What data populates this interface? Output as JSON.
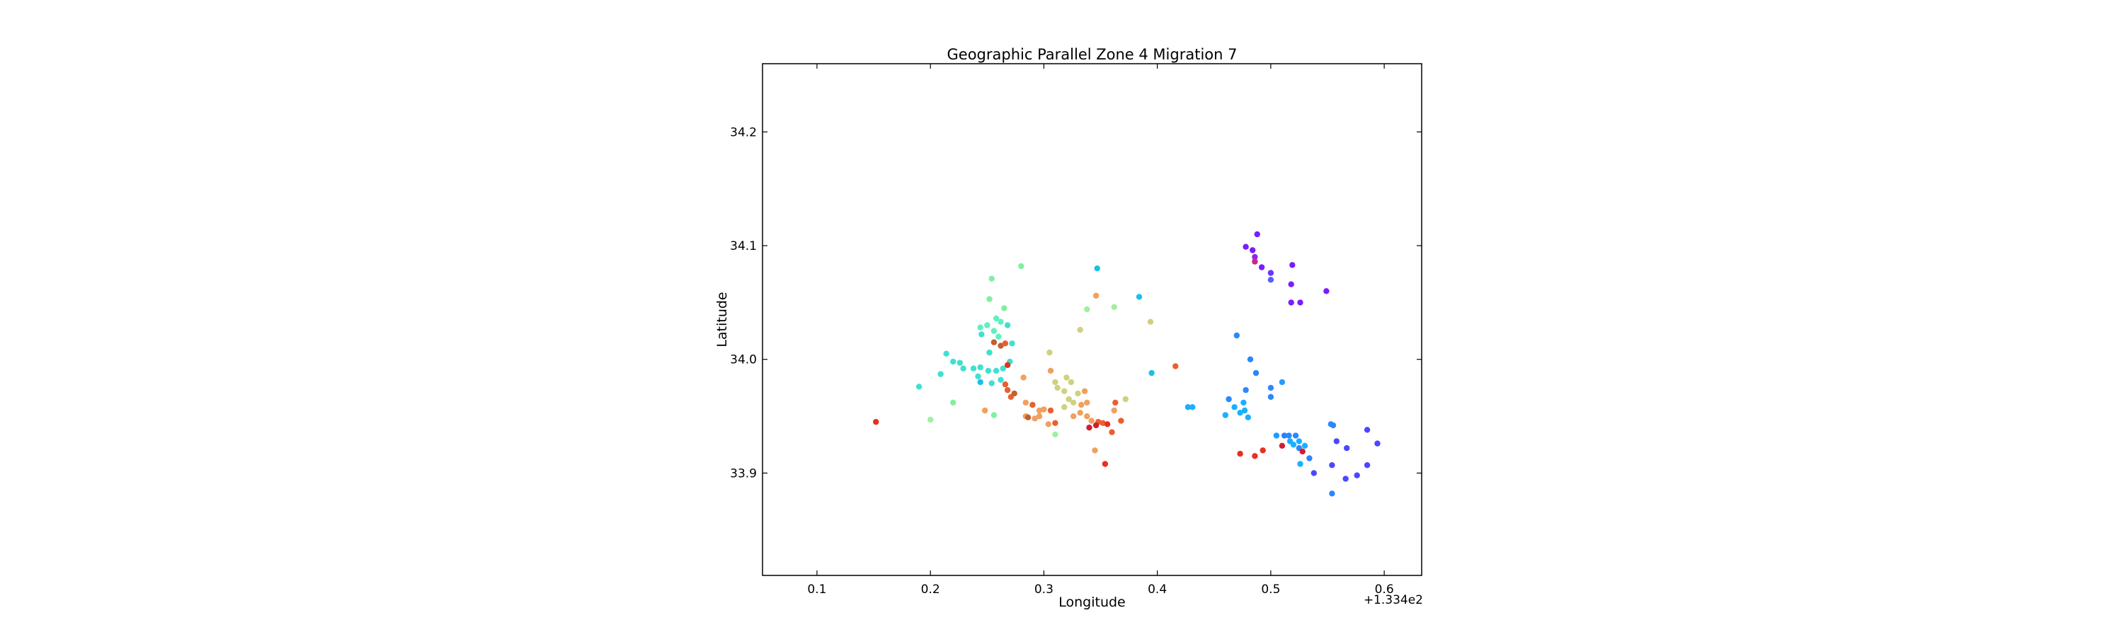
{
  "chart_data": {
    "type": "scatter",
    "title": "Geographic Parallel Zone 4 Migration 7",
    "xlabel": "Longitude",
    "ylabel": "Latitude",
    "x_offset_label": "+1.334e2",
    "xlim": [
      0.052,
      0.633
    ],
    "ylim": [
      33.81,
      34.26
    ],
    "x_ticks": [
      {
        "value": 0.1,
        "label": "0.1"
      },
      {
        "value": 0.2,
        "label": "0.2"
      },
      {
        "value": 0.3,
        "label": "0.3"
      },
      {
        "value": 0.4,
        "label": "0.4"
      },
      {
        "value": 0.5,
        "label": "0.5"
      },
      {
        "value": 0.6,
        "label": "0.6"
      }
    ],
    "y_ticks": [
      {
        "value": 33.9,
        "label": "33.9"
      },
      {
        "value": 34.0,
        "label": "34.0"
      },
      {
        "value": 34.1,
        "label": "34.1"
      },
      {
        "value": 34.2,
        "label": "34.2"
      }
    ],
    "grid": false,
    "points": [
      {
        "x": 0.488,
        "y": 34.11,
        "color": "#7a1cff"
      },
      {
        "x": 0.478,
        "y": 34.099,
        "color": "#7a1cff"
      },
      {
        "x": 0.484,
        "y": 34.096,
        "color": "#7a1cff"
      },
      {
        "x": 0.486,
        "y": 34.09,
        "color": "#8a2be2"
      },
      {
        "x": 0.486,
        "y": 34.086,
        "color": "#d0208c"
      },
      {
        "x": 0.492,
        "y": 34.081,
        "color": "#7a1cff"
      },
      {
        "x": 0.5,
        "y": 34.076,
        "color": "#6a35ff"
      },
      {
        "x": 0.5,
        "y": 34.07,
        "color": "#5060ff"
      },
      {
        "x": 0.519,
        "y": 34.083,
        "color": "#7a1cff"
      },
      {
        "x": 0.518,
        "y": 34.066,
        "color": "#7a1cff"
      },
      {
        "x": 0.518,
        "y": 34.05,
        "color": "#7a1cff"
      },
      {
        "x": 0.526,
        "y": 34.05,
        "color": "#7a1cff"
      },
      {
        "x": 0.549,
        "y": 34.06,
        "color": "#7a1cff"
      },
      {
        "x": 0.47,
        "y": 34.021,
        "color": "#2a88ff"
      },
      {
        "x": 0.482,
        "y": 34.0,
        "color": "#2a88ff"
      },
      {
        "x": 0.487,
        "y": 33.988,
        "color": "#2a88ff"
      },
      {
        "x": 0.51,
        "y": 33.98,
        "color": "#2a9bff"
      },
      {
        "x": 0.5,
        "y": 33.975,
        "color": "#2a88ff"
      },
      {
        "x": 0.5,
        "y": 33.967,
        "color": "#2a88ff"
      },
      {
        "x": 0.478,
        "y": 33.973,
        "color": "#2a88ff"
      },
      {
        "x": 0.463,
        "y": 33.965,
        "color": "#2a88ff"
      },
      {
        "x": 0.476,
        "y": 33.962,
        "color": "#1ab0ff"
      },
      {
        "x": 0.468,
        "y": 33.958,
        "color": "#1ab0ff"
      },
      {
        "x": 0.473,
        "y": 33.953,
        "color": "#1ab0ff"
      },
      {
        "x": 0.477,
        "y": 33.955,
        "color": "#1ab0ff"
      },
      {
        "x": 0.46,
        "y": 33.951,
        "color": "#1ab0ff"
      },
      {
        "x": 0.48,
        "y": 33.949,
        "color": "#1ab0ff"
      },
      {
        "x": 0.427,
        "y": 33.958,
        "color": "#1ab0ff"
      },
      {
        "x": 0.431,
        "y": 33.958,
        "color": "#1ab0ff"
      },
      {
        "x": 0.553,
        "y": 33.943,
        "color": "#2a88ff"
      },
      {
        "x": 0.555,
        "y": 33.942,
        "color": "#2a88ff"
      },
      {
        "x": 0.505,
        "y": 33.933,
        "color": "#1a9bff"
      },
      {
        "x": 0.512,
        "y": 33.933,
        "color": "#2a7fff"
      },
      {
        "x": 0.516,
        "y": 33.933,
        "color": "#2a88ff"
      },
      {
        "x": 0.522,
        "y": 33.933,
        "color": "#2a88ff"
      },
      {
        "x": 0.517,
        "y": 33.928,
        "color": "#1ab0ff"
      },
      {
        "x": 0.525,
        "y": 33.928,
        "color": "#1ab0ff"
      },
      {
        "x": 0.52,
        "y": 33.925,
        "color": "#1ab0ff"
      },
      {
        "x": 0.53,
        "y": 33.924,
        "color": "#1ab0ff"
      },
      {
        "x": 0.525,
        "y": 33.922,
        "color": "#2a88ff"
      },
      {
        "x": 0.51,
        "y": 33.924,
        "color": "#d02030"
      },
      {
        "x": 0.528,
        "y": 33.919,
        "color": "#d02030"
      },
      {
        "x": 0.534,
        "y": 33.913,
        "color": "#2a88ff"
      },
      {
        "x": 0.526,
        "y": 33.908,
        "color": "#1ab0ff"
      },
      {
        "x": 0.538,
        "y": 33.9,
        "color": "#4a48ff"
      },
      {
        "x": 0.558,
        "y": 33.928,
        "color": "#4a48ff"
      },
      {
        "x": 0.567,
        "y": 33.922,
        "color": "#4a48ff"
      },
      {
        "x": 0.585,
        "y": 33.938,
        "color": "#4a48ff"
      },
      {
        "x": 0.594,
        "y": 33.926,
        "color": "#4a48ff"
      },
      {
        "x": 0.554,
        "y": 33.907,
        "color": "#4a48ff"
      },
      {
        "x": 0.566,
        "y": 33.895,
        "color": "#4a48ff"
      },
      {
        "x": 0.576,
        "y": 33.898,
        "color": "#4a48ff"
      },
      {
        "x": 0.585,
        "y": 33.907,
        "color": "#4a48ff"
      },
      {
        "x": 0.554,
        "y": 33.882,
        "color": "#2a88ff"
      },
      {
        "x": 0.473,
        "y": 33.917,
        "color": "#e83020"
      },
      {
        "x": 0.486,
        "y": 33.915,
        "color": "#e83020"
      },
      {
        "x": 0.493,
        "y": 33.92,
        "color": "#e83020"
      },
      {
        "x": 0.347,
        "y": 34.08,
        "color": "#1ac0e8"
      },
      {
        "x": 0.384,
        "y": 34.055,
        "color": "#1ac0e8"
      },
      {
        "x": 0.395,
        "y": 33.988,
        "color": "#1ac0e8"
      },
      {
        "x": 0.362,
        "y": 34.046,
        "color": "#a0f0a0"
      },
      {
        "x": 0.338,
        "y": 34.044,
        "color": "#a0f0a0"
      },
      {
        "x": 0.28,
        "y": 34.082,
        "color": "#80f0a0"
      },
      {
        "x": 0.254,
        "y": 34.071,
        "color": "#80f0a0"
      },
      {
        "x": 0.252,
        "y": 34.053,
        "color": "#80f0a0"
      },
      {
        "x": 0.265,
        "y": 34.045,
        "color": "#80f0a0"
      },
      {
        "x": 0.258,
        "y": 34.036,
        "color": "#60f0c0"
      },
      {
        "x": 0.25,
        "y": 34.03,
        "color": "#60f0c0"
      },
      {
        "x": 0.244,
        "y": 34.028,
        "color": "#60f0c0"
      },
      {
        "x": 0.262,
        "y": 34.033,
        "color": "#60f0c0"
      },
      {
        "x": 0.256,
        "y": 34.025,
        "color": "#60f0c0"
      },
      {
        "x": 0.245,
        "y": 34.022,
        "color": "#40e0d0"
      },
      {
        "x": 0.26,
        "y": 34.02,
        "color": "#60f0c0"
      },
      {
        "x": 0.268,
        "y": 34.03,
        "color": "#40e0d0"
      },
      {
        "x": 0.272,
        "y": 34.014,
        "color": "#40e0d0"
      },
      {
        "x": 0.256,
        "y": 34.015,
        "color": "#c06030"
      },
      {
        "x": 0.262,
        "y": 34.012,
        "color": "#c06030"
      },
      {
        "x": 0.266,
        "y": 34.014,
        "color": "#e86030"
      },
      {
        "x": 0.252,
        "y": 34.006,
        "color": "#40e0d0"
      },
      {
        "x": 0.214,
        "y": 34.005,
        "color": "#40e0d0"
      },
      {
        "x": 0.22,
        "y": 33.998,
        "color": "#40e0d0"
      },
      {
        "x": 0.226,
        "y": 33.997,
        "color": "#40e0d0"
      },
      {
        "x": 0.229,
        "y": 33.992,
        "color": "#40e0d0"
      },
      {
        "x": 0.238,
        "y": 33.992,
        "color": "#40e0d0"
      },
      {
        "x": 0.244,
        "y": 33.993,
        "color": "#40e0d0"
      },
      {
        "x": 0.251,
        "y": 33.99,
        "color": "#40e0d0"
      },
      {
        "x": 0.258,
        "y": 33.99,
        "color": "#40e0d0"
      },
      {
        "x": 0.264,
        "y": 33.992,
        "color": "#40e0d0"
      },
      {
        "x": 0.27,
        "y": 33.998,
        "color": "#40e0d0"
      },
      {
        "x": 0.268,
        "y": 33.995,
        "color": "#e83020"
      },
      {
        "x": 0.209,
        "y": 33.987,
        "color": "#40e0d0"
      },
      {
        "x": 0.242,
        "y": 33.985,
        "color": "#40e0d0"
      },
      {
        "x": 0.262,
        "y": 33.982,
        "color": "#40e0d0"
      },
      {
        "x": 0.254,
        "y": 33.979,
        "color": "#40e0d0"
      },
      {
        "x": 0.244,
        "y": 33.98,
        "color": "#1ac0e8"
      },
      {
        "x": 0.19,
        "y": 33.976,
        "color": "#40e0d0"
      },
      {
        "x": 0.266,
        "y": 33.978,
        "color": "#e86030"
      },
      {
        "x": 0.268,
        "y": 33.973,
        "color": "#e86030"
      },
      {
        "x": 0.271,
        "y": 33.967,
        "color": "#e86030"
      },
      {
        "x": 0.282,
        "y": 33.984,
        "color": "#f0a060"
      },
      {
        "x": 0.284,
        "y": 33.962,
        "color": "#f0a060"
      },
      {
        "x": 0.29,
        "y": 33.96,
        "color": "#e86030"
      },
      {
        "x": 0.296,
        "y": 33.955,
        "color": "#f0a060"
      },
      {
        "x": 0.3,
        "y": 33.956,
        "color": "#f0a060"
      },
      {
        "x": 0.306,
        "y": 33.955,
        "color": "#e86030"
      },
      {
        "x": 0.284,
        "y": 33.95,
        "color": "#f0a060"
      },
      {
        "x": 0.292,
        "y": 33.948,
        "color": "#f0a060"
      },
      {
        "x": 0.31,
        "y": 33.944,
        "color": "#e86030"
      },
      {
        "x": 0.286,
        "y": 33.949,
        "color": "#c06030"
      },
      {
        "x": 0.304,
        "y": 33.943,
        "color": "#f0a060"
      },
      {
        "x": 0.248,
        "y": 33.955,
        "color": "#f0a060"
      },
      {
        "x": 0.256,
        "y": 33.951,
        "color": "#80f0a0"
      },
      {
        "x": 0.22,
        "y": 33.962,
        "color": "#80f0a0"
      },
      {
        "x": 0.2,
        "y": 33.947,
        "color": "#a0f0a0"
      },
      {
        "x": 0.152,
        "y": 33.945,
        "color": "#e83020"
      },
      {
        "x": 0.305,
        "y": 34.006,
        "color": "#d0d080"
      },
      {
        "x": 0.306,
        "y": 33.99,
        "color": "#f0a060"
      },
      {
        "x": 0.31,
        "y": 33.98,
        "color": "#d0d080"
      },
      {
        "x": 0.312,
        "y": 33.975,
        "color": "#d0d080"
      },
      {
        "x": 0.318,
        "y": 33.972,
        "color": "#d0d080"
      },
      {
        "x": 0.32,
        "y": 33.984,
        "color": "#d0d080"
      },
      {
        "x": 0.324,
        "y": 33.98,
        "color": "#d0d080"
      },
      {
        "x": 0.33,
        "y": 33.97,
        "color": "#d0d080"
      },
      {
        "x": 0.326,
        "y": 33.962,
        "color": "#d0d080"
      },
      {
        "x": 0.322,
        "y": 33.965,
        "color": "#d0d080"
      },
      {
        "x": 0.318,
        "y": 33.958,
        "color": "#d0d080"
      },
      {
        "x": 0.336,
        "y": 33.972,
        "color": "#f0a060"
      },
      {
        "x": 0.333,
        "y": 33.96,
        "color": "#f0a060"
      },
      {
        "x": 0.338,
        "y": 33.962,
        "color": "#f0a060"
      },
      {
        "x": 0.332,
        "y": 33.953,
        "color": "#f0a060"
      },
      {
        "x": 0.326,
        "y": 33.95,
        "color": "#f0a060"
      },
      {
        "x": 0.338,
        "y": 33.95,
        "color": "#f0a060"
      },
      {
        "x": 0.342,
        "y": 33.946,
        "color": "#f0a060"
      },
      {
        "x": 0.348,
        "y": 33.945,
        "color": "#e86030"
      },
      {
        "x": 0.352,
        "y": 33.944,
        "color": "#e86030"
      },
      {
        "x": 0.356,
        "y": 33.943,
        "color": "#e83020"
      },
      {
        "x": 0.346,
        "y": 33.942,
        "color": "#d02030"
      },
      {
        "x": 0.34,
        "y": 33.94,
        "color": "#d02030"
      },
      {
        "x": 0.36,
        "y": 33.936,
        "color": "#e86030"
      },
      {
        "x": 0.363,
        "y": 33.962,
        "color": "#e86030"
      },
      {
        "x": 0.362,
        "y": 33.955,
        "color": "#f0a060"
      },
      {
        "x": 0.368,
        "y": 33.946,
        "color": "#e86030"
      },
      {
        "x": 0.345,
        "y": 33.92,
        "color": "#f0a060"
      },
      {
        "x": 0.354,
        "y": 33.908,
        "color": "#e83020"
      },
      {
        "x": 0.372,
        "y": 33.965,
        "color": "#d0d080"
      },
      {
        "x": 0.31,
        "y": 33.934,
        "color": "#a0f0a0"
      },
      {
        "x": 0.346,
        "y": 34.056,
        "color": "#f0a060"
      },
      {
        "x": 0.332,
        "y": 34.026,
        "color": "#d0d080"
      },
      {
        "x": 0.394,
        "y": 34.033,
        "color": "#d0d080"
      },
      {
        "x": 0.416,
        "y": 33.994,
        "color": "#e86030"
      },
      {
        "x": 0.274,
        "y": 33.97,
        "color": "#c06030"
      },
      {
        "x": 0.296,
        "y": 33.95,
        "color": "#f0a060"
      }
    ]
  }
}
